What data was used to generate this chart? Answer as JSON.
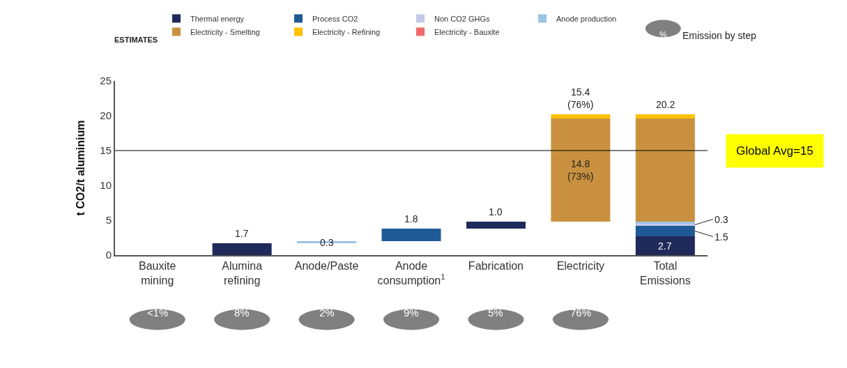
{
  "chart_data": {
    "type": "bar",
    "categories": [
      "Bauxite mining",
      "Alumina refining",
      "Anode/Paste",
      "Anode consumption$^{1}$",
      "Fabrication",
      "Electricity",
      "Total Emissions"
    ],
    "series": [
      {
        "name": "Thermal energy",
        "color": "#1f2a5a",
        "values": [
          null,
          1.7,
          null,
          null,
          1.0,
          null,
          2.7
        ],
        "base": [
          null,
          0,
          null,
          null,
          3.8,
          null,
          0
        ],
        "value_labels": [
          null,
          "1.7",
          null,
          null,
          "1.0",
          null,
          "2.7"
        ]
      },
      {
        "name": "Process CO2",
        "color": "#1f5a96",
        "values": [
          null,
          null,
          null,
          1.8,
          null,
          null,
          1.5
        ],
        "base": [
          null,
          null,
          null,
          2.0,
          null,
          null,
          2.7
        ],
        "value_labels": [
          null,
          null,
          null,
          "1.8",
          null,
          null,
          "1.5"
        ]
      },
      {
        "name": "Non CO2 GHGs",
        "color": "#c5c8e8",
        "values": [
          null,
          null,
          null,
          null,
          null,
          null,
          0.3
        ],
        "base": [
          null,
          null,
          null,
          null,
          null,
          null,
          4.2
        ],
        "value_labels": [
          null,
          null,
          null,
          null,
          null,
          null,
          "0.3"
        ]
      },
      {
        "name": "Anode production",
        "color": "#9dc3e6",
        "values": [
          null,
          null,
          0.3,
          null,
          null,
          null,
          0.3
        ],
        "base": [
          null,
          null,
          1.7,
          null,
          null,
          null,
          4.5
        ],
        "value_labels": [
          null,
          null,
          "0.3",
          null,
          null,
          null,
          null
        ]
      },
      {
        "name": "Electricity - Smelting",
        "color": "#c9913f",
        "values": [
          null,
          null,
          null,
          null,
          null,
          14.8,
          14.8
        ],
        "base": [
          null,
          null,
          null,
          null,
          null,
          4.8,
          4.8
        ],
        "value_labels": [
          null,
          null,
          null,
          null,
          null,
          "14.8\n(73%)",
          null
        ]
      },
      {
        "name": "Electricity - Refining",
        "color": "#ffc000",
        "values": [
          null,
          null,
          null,
          null,
          null,
          0.6,
          0.6
        ],
        "base": [
          null,
          null,
          null,
          null,
          null,
          19.6,
          19.6
        ],
        "value_labels": [
          null,
          null,
          null,
          null,
          null,
          null,
          null
        ]
      },
      {
        "name": "Electricity - Bauxite",
        "color": "#f26b6b",
        "values": [
          null,
          null,
          null,
          null,
          null,
          null,
          null
        ],
        "value_labels": [
          null,
          null,
          null,
          null,
          null,
          null,
          null
        ]
      }
    ],
    "ylabel": "t CO2/t aluminium",
    "ylim": [
      0,
      25
    ],
    "yticks": [
      0,
      5,
      10,
      15,
      20,
      25
    ],
    "grid": false,
    "legend": "top",
    "ref_lines": [
      {
        "axis": "y",
        "value": 15,
        "label": "Global Avg=15",
        "color": "#000000"
      }
    ],
    "annotations": [
      "ESTIMATES",
      "%",
      "Emission by step",
      "<1%",
      "8%",
      "2%",
      "9%",
      "5%",
      "76%",
      {
        "text": "15.4\n(76%)",
        "x": "Electricity",
        "y": 20.2
      },
      {
        "text": "20.2",
        "x": "Total Emissions",
        "y": 20.2
      }
    ]
  }
}
